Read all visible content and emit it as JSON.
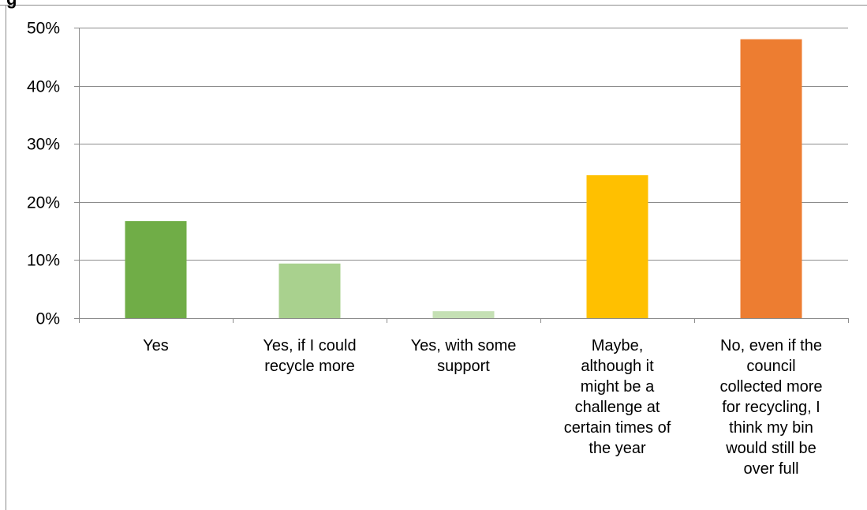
{
  "cut_title": "g",
  "chart_data": {
    "type": "bar",
    "title": "",
    "xlabel": "",
    "ylabel": "",
    "ylim": [
      0,
      50
    ],
    "y_ticks": [
      "0%",
      "10%",
      "20%",
      "30%",
      "40%",
      "50%"
    ],
    "y_tick_values": [
      0,
      10,
      20,
      30,
      40,
      50
    ],
    "grid": true,
    "categories": [
      [
        "Yes"
      ],
      [
        "Yes, if I could",
        "recycle more"
      ],
      [
        "Yes, with some",
        "support"
      ],
      [
        "Maybe,",
        "although it",
        "might be a",
        "challenge at",
        "certain times of",
        "the year"
      ],
      [
        "No, even if the",
        "council",
        "collected more",
        "for recycling, I",
        "think my bin",
        "would still be",
        "over full"
      ]
    ],
    "values": [
      16.7,
      9.4,
      1.2,
      24.6,
      48.0
    ],
    "colors": [
      "#70ad47",
      "#a9d18e",
      "#c5e0b4",
      "#ffc000",
      "#ed7d31"
    ]
  }
}
